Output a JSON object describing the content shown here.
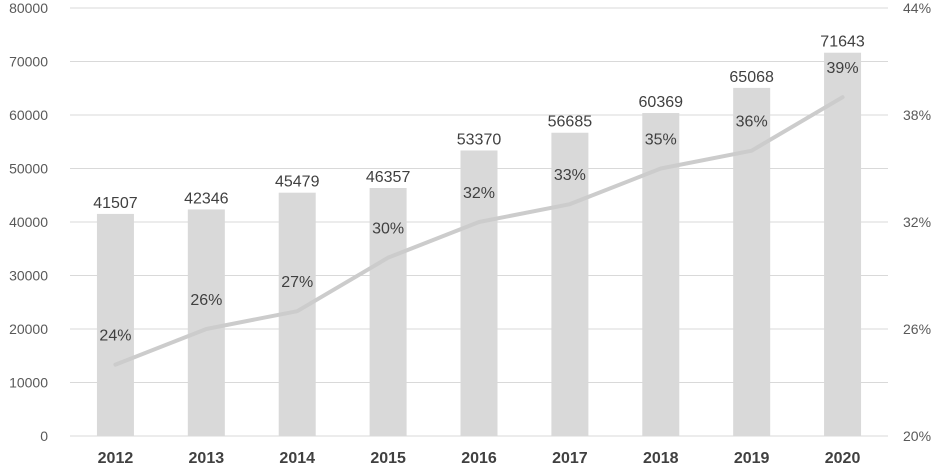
{
  "chart_data": {
    "type": "bar",
    "categories": [
      "2012",
      "2013",
      "2014",
      "2015",
      "2016",
      "2017",
      "2018",
      "2019",
      "2020"
    ],
    "series": [
      {
        "type": "bar",
        "axis": "left",
        "values": [
          41507,
          42346,
          45479,
          46357,
          53370,
          56685,
          60369,
          65068,
          71643
        ],
        "data_labels": [
          "41507",
          "42346",
          "45479",
          "46357",
          "53370",
          "56685",
          "60369",
          "65068",
          "71643"
        ],
        "color": "#d9d9d9"
      },
      {
        "type": "line",
        "axis": "right",
        "values": [
          24,
          26,
          27,
          30,
          32,
          33,
          35,
          36,
          39
        ],
        "data_labels": [
          "24%",
          "26%",
          "27%",
          "30%",
          "32%",
          "33%",
          "35%",
          "36%",
          "39%"
        ],
        "color": "#cccccc"
      }
    ],
    "y_left": {
      "range": [
        0,
        80000
      ],
      "ticks": [
        0,
        10000,
        20000,
        30000,
        40000,
        50000,
        60000,
        70000,
        80000
      ],
      "tick_labels": [
        "0",
        "10000",
        "20000",
        "30000",
        "40000",
        "50000",
        "60000",
        "70000",
        "80000"
      ]
    },
    "y_right": {
      "range": [
        20,
        44
      ],
      "ticks": [
        20,
        26,
        32,
        38,
        44
      ],
      "tick_labels": [
        "20%",
        "26%",
        "32%",
        "38%",
        "44%"
      ]
    },
    "grid": true,
    "legend": "none",
    "gridline_color": "#d9d9d9"
  }
}
